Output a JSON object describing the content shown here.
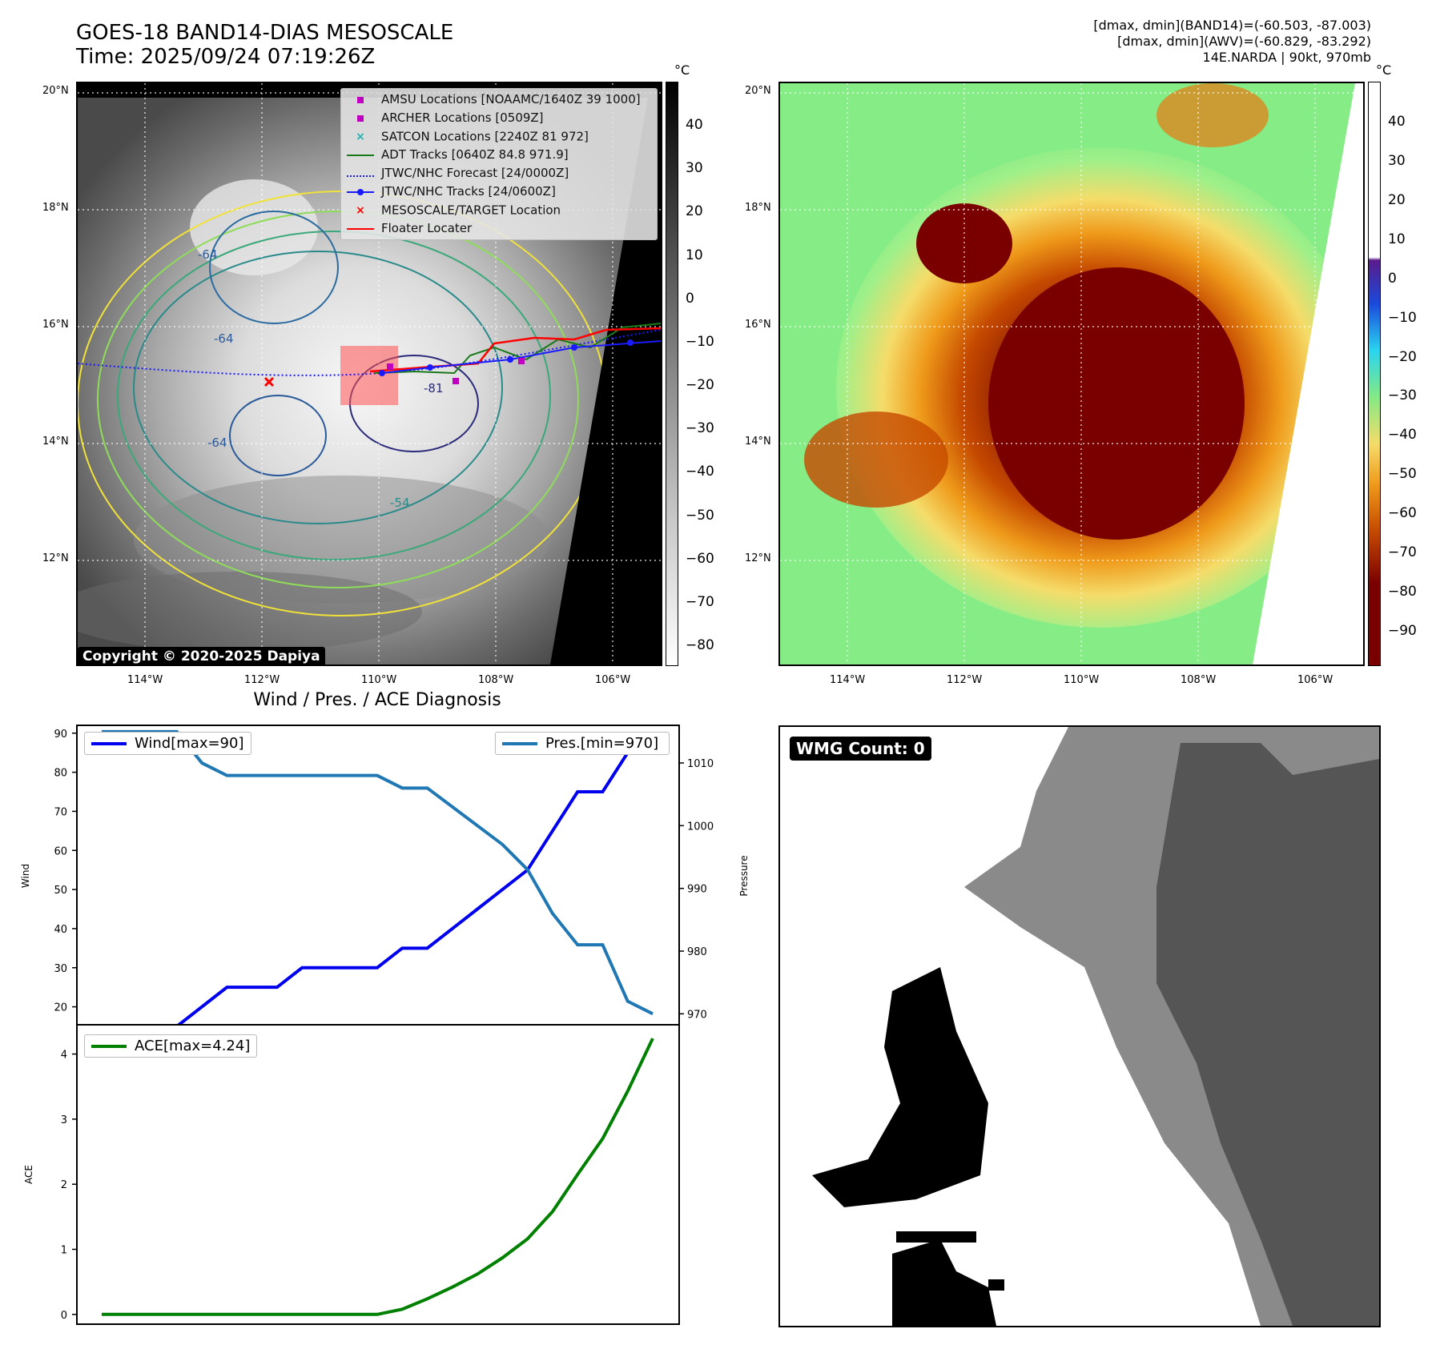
{
  "header": {
    "title_line1": "GOES-18 BAND14-DIAS MESOSCALE",
    "title_line2": "Time: 2025/09/24 07:19:26Z",
    "right_line1": "[dmax, dmin](BAND14)=(-60.503, -87.003)",
    "right_line2": "[dmax, dmin](AWV)=(-60.829, -83.292)",
    "right_line3": "14E.NARDA | 90kt, 970mb"
  },
  "map": {
    "lat_labels": [
      "20°N",
      "18°N",
      "16°N",
      "14°N",
      "12°N"
    ],
    "lon_labels": [
      "114°W",
      "112°W",
      "110°W",
      "108°W",
      "106°W"
    ],
    "contour_labels": [
      "-64",
      "-64",
      "-64",
      "-54",
      "-81"
    ],
    "copyright": "Copyright © 2020-2025 Dapiya"
  },
  "legend": {
    "items": [
      {
        "label": "AMSU Locations [NOAAMC/1640Z 39 1000]",
        "color": "#c000c0",
        "marker": "square"
      },
      {
        "label": "ARCHER Locations [0509Z]",
        "color": "#c000c0",
        "marker": "square"
      },
      {
        "label": "SATCON Locations [2240Z 81 972]",
        "color": "#20b0b0",
        "marker": "x"
      },
      {
        "label": "ADT Tracks [0640Z 84.8 971.9]",
        "color": "#1a7a1a",
        "marker": "line"
      },
      {
        "label": "JTWC/NHC Forecast [24/0000Z]",
        "color": "#1a1aff",
        "marker": "dotted"
      },
      {
        "label": "JTWC/NHC Tracks [24/0600Z]",
        "color": "#1a1aff",
        "marker": "line-dot"
      },
      {
        "label": "MESOSCALE/TARGET Location",
        "color": "#ff0000",
        "marker": "x"
      },
      {
        "label": "Floater Locater",
        "color": "#ff0000",
        "marker": "line"
      }
    ]
  },
  "colorbar_left": {
    "unit": "°C",
    "ticks": [
      "40",
      "30",
      "20",
      "10",
      "0",
      "−10",
      "−20",
      "−30",
      "−40",
      "−50",
      "−60",
      "−70",
      "−80"
    ]
  },
  "colorbar_right": {
    "unit": "°C",
    "ticks": [
      "40",
      "30",
      "20",
      "10",
      "0",
      "−10",
      "−20",
      "−30",
      "−40",
      "−50",
      "−60",
      "−70",
      "−80",
      "−90"
    ]
  },
  "wmg": {
    "label": "WMG Count: 0"
  },
  "chart_data": [
    {
      "type": "line",
      "title": "Wind / Pres. / ACE Diagnosis",
      "ylabel": "Wind",
      "ylabel_right": "Pressure",
      "yticks_left": [
        "90",
        "80",
        "70",
        "60",
        "50",
        "40",
        "30",
        "20"
      ],
      "yticks_right": [
        "1010",
        "1000",
        "990",
        "980",
        "970"
      ],
      "ylim": [
        15,
        92
      ],
      "ylim_right": [
        968,
        1016
      ],
      "series": [
        {
          "name": "Wind[max=90]",
          "color": "#0000ee",
          "values": [
            15,
            15,
            15,
            15,
            20,
            25,
            25,
            25,
            30,
            30,
            30,
            30,
            35,
            35,
            40,
            45,
            50,
            55,
            65,
            75,
            75,
            85,
            90
          ]
        },
        {
          "name": "Pres.[min=970]",
          "color": "#1f77b4",
          "values": [
            1015,
            1015,
            1015,
            1015,
            1010,
            1008,
            1008,
            1008,
            1008,
            1008,
            1008,
            1008,
            1006,
            1006,
            1003,
            1000,
            997,
            993,
            986,
            981,
            981,
            972,
            970
          ]
        }
      ]
    },
    {
      "type": "line",
      "ylabel": "ACE",
      "yticks": [
        "4",
        "3",
        "2",
        "1",
        "0"
      ],
      "ylim": [
        -0.15,
        4.45
      ],
      "series": [
        {
          "name": "ACE[max=4.24]",
          "color": "#008000",
          "values": [
            0,
            0,
            0,
            0,
            0,
            0,
            0,
            0,
            0,
            0,
            0,
            0,
            0.08,
            0.24,
            0.42,
            0.62,
            0.87,
            1.16,
            1.58,
            2.15,
            2.7,
            3.43,
            4.24
          ]
        }
      ]
    }
  ]
}
